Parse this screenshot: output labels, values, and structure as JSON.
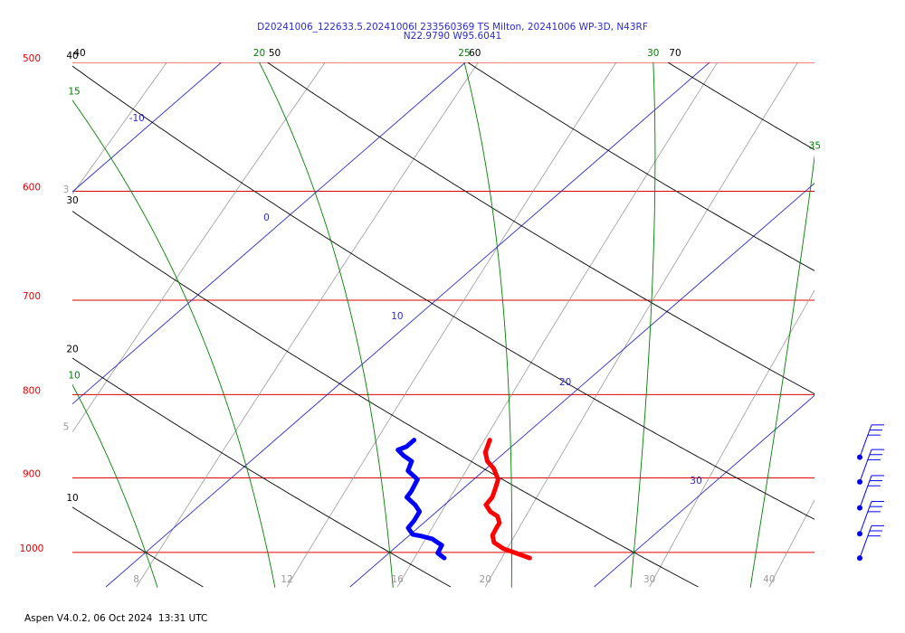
{
  "chart_data": {
    "type": "skew-t",
    "title": "D20241006_122633.5.20241006I 233560369 TS Milton, 20241006 WP-3D, N43RF",
    "subtitle": "N22.9790 W95.6041",
    "footer": "Aspen V4.0.2, 06 Oct 2024  13:31 UTC",
    "log_y": true,
    "ylim": [
      1050,
      500
    ],
    "yticks": [
      500,
      600,
      700,
      800,
      900,
      1000
    ],
    "xlim": [
      7,
      37.4
    ],
    "isotherms": [
      -10,
      0,
      10,
      20,
      30
    ],
    "dry_adiabats": [
      10,
      20,
      30,
      40,
      50,
      60,
      70
    ],
    "moist_adiabats": [
      10,
      15,
      20,
      25,
      30,
      35
    ],
    "mixing_ratios": [
      3,
      5,
      8,
      12,
      16,
      20,
      30,
      40
    ],
    "colors": {
      "isobar": "#e00000",
      "isotherm": "#2a2ad0",
      "dry_adiabat": "#000000",
      "moist_adiabat": "#008000",
      "mixing_ratio": "#9a9a9a"
    },
    "series": [
      {
        "color": "#ff0000",
        "pressure": [
          1008,
          1001,
          995,
          986,
          976,
          965,
          959,
          950,
          944,
          935,
          925,
          913,
          902,
          888,
          879,
          868,
          853
        ],
        "values": [
          26.0,
          25.2,
          24.5,
          23.8,
          23.4,
          23.2,
          23.1,
          22.7,
          22.2,
          21.7,
          21.6,
          21.3,
          21.0,
          20.3,
          19.7,
          19.2,
          18.8
        ]
      },
      {
        "color": "#0000ff",
        "pressure": [
          1008,
          1001,
          990,
          981,
          977,
          975,
          966,
          956,
          944,
          935,
          925,
          917,
          902,
          891,
          879,
          872,
          865,
          861,
          853
        ],
        "values": [
          22.5,
          22.0,
          21.8,
          21.1,
          20.5,
          20.1,
          19.6,
          19.5,
          19.3,
          18.8,
          18.1,
          18.0,
          17.7,
          16.9,
          16.6,
          16.0,
          15.5,
          15.7,
          15.7
        ]
      }
    ],
    "winds": {
      "color": "#0000ff",
      "pressure": [
        874,
        905,
        939,
        974,
        1008
      ],
      "direction": [
        20,
        20,
        20,
        20,
        20
      ],
      "speed": [
        30,
        30,
        30,
        30,
        30
      ]
    }
  }
}
